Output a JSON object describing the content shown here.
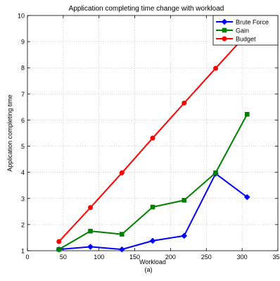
{
  "chart_data": {
    "type": "line",
    "title": "Application completing time change with workload",
    "xlabel": "Workload",
    "ylabel": "Application completing time",
    "caption": "(a)",
    "xlim": [
      0,
      350
    ],
    "ylim": [
      1,
      10
    ],
    "xticks": [
      0,
      50,
      100,
      150,
      200,
      250,
      300,
      350
    ],
    "yticks": [
      1,
      2,
      3,
      4,
      5,
      6,
      7,
      8,
      9,
      10
    ],
    "grid": true,
    "legend_position": "top-right",
    "x": [
      44,
      88,
      132,
      175,
      219,
      263,
      307
    ],
    "series": [
      {
        "name": "Brute Force",
        "color": "#0000ff",
        "marker": "diamond",
        "values": [
          1.05,
          1.15,
          1.05,
          1.38,
          1.57,
          3.95,
          3.05
        ]
      },
      {
        "name": "Gain",
        "color": "#008000",
        "marker": "square",
        "values": [
          1.05,
          1.75,
          1.63,
          2.67,
          2.93,
          3.98,
          6.22
        ]
      },
      {
        "name": "Budget",
        "color": "#ff0000",
        "marker": "circle",
        "values": [
          1.35,
          2.65,
          3.98,
          5.31,
          6.65,
          7.98,
          9.3
        ]
      }
    ]
  }
}
